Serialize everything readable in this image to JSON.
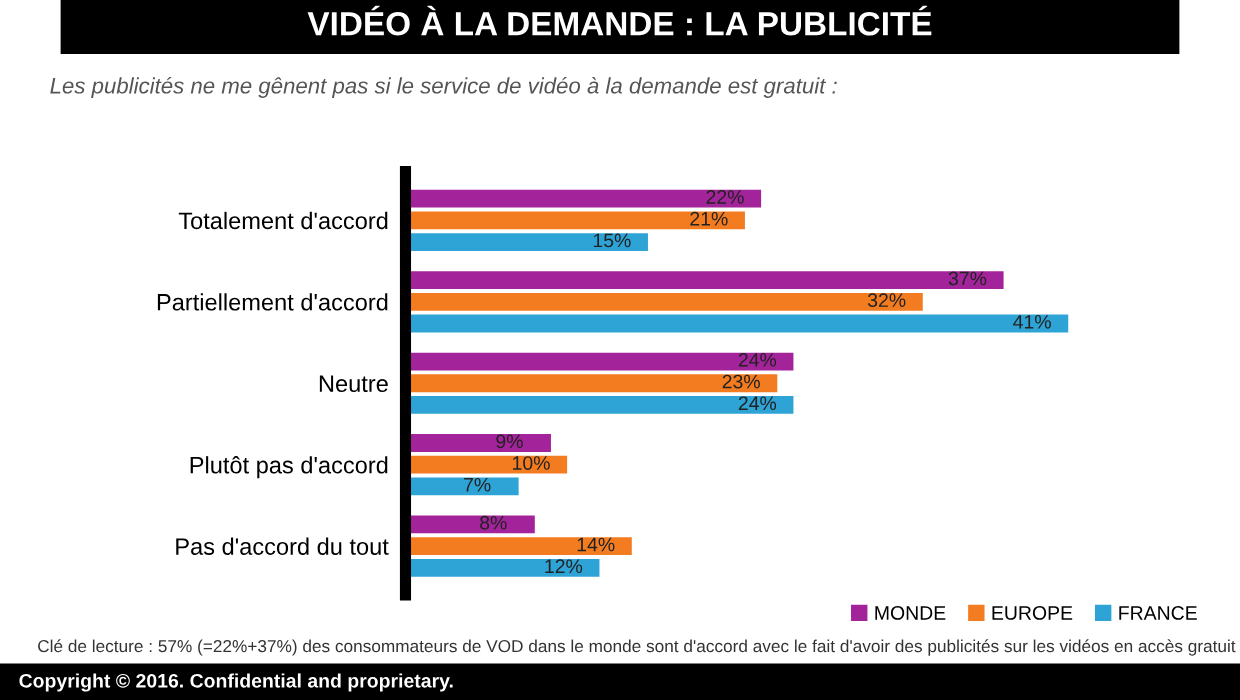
{
  "chart_data": {
    "type": "bar",
    "orientation": "horizontal",
    "title": "VIDÉO À LA DEMANDE : LA PUBLICITÉ",
    "subtitle": "Les publicités ne me gênent pas si le service de vidéo à la demande est gratuit :",
    "categories": [
      "Totalement d'accord",
      "Partiellement d'accord",
      "Neutre",
      "Plutôt pas d'accord",
      "Pas d'accord du tout"
    ],
    "series": [
      {
        "name": "MONDE",
        "color": "#a3239a",
        "values": [
          22,
          37,
          24,
          9,
          8
        ],
        "value_labels": [
          "22%",
          "37%",
          "24%",
          "9%",
          "8%"
        ]
      },
      {
        "name": "EUROPE",
        "color": "#f47c20",
        "values": [
          21,
          32,
          23,
          10,
          14
        ],
        "value_labels": [
          "21%",
          "32%",
          "23%",
          "10%",
          "14%"
        ]
      },
      {
        "name": "FRANCE",
        "color": "#2ea3d5",
        "values": [
          15,
          41,
          24,
          7,
          12
        ],
        "value_labels": [
          "15%",
          "41%",
          "24%",
          "7%",
          "12%"
        ]
      }
    ],
    "legend": "bottom right",
    "grid": false,
    "annotations": [
      "Clé de lecture : 57% (=22%+37%) des consommateurs de VOD dans le monde sont d'accord avec le fait d'avoir des publicités sur les vidéos en accès gratuit",
      "Copyright © 2016. Confidential and proprietary."
    ]
  }
}
